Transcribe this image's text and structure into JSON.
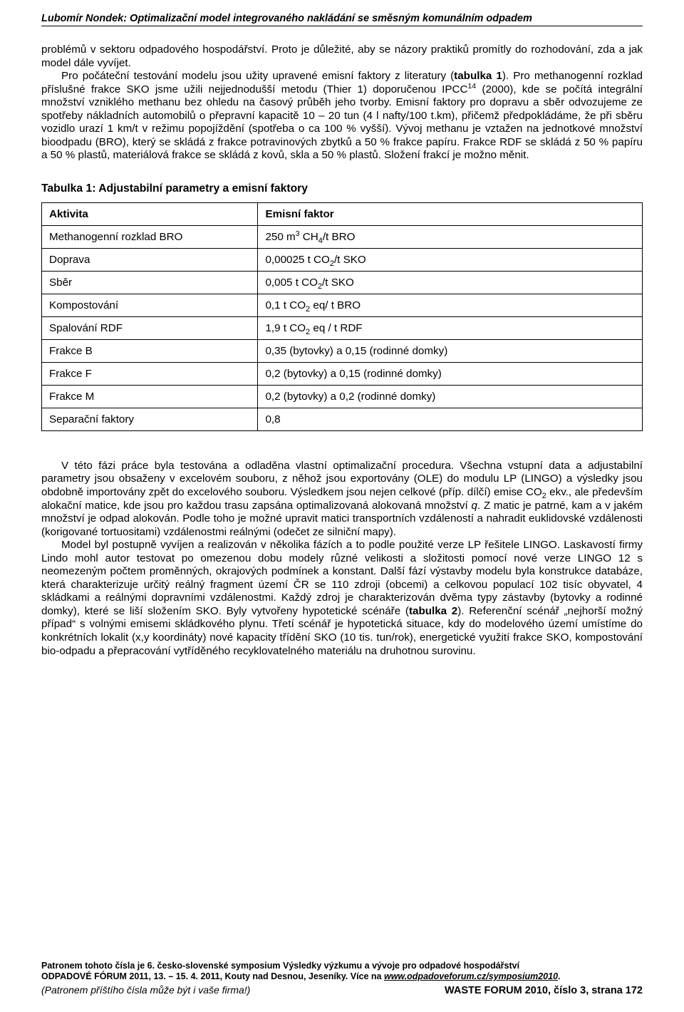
{
  "header": {
    "topline": "Lubomír Nondek: Optimalizační model integrovaného nakládání se směsným komunálním odpadem"
  },
  "para1_html": "problémů v sektoru odpadového hospodářství. Proto je důležité, aby se názory praktiků promítly do rozhodování, zda a jak model dále vyvíjet.",
  "para1b_html": "Pro počáteční testování modelu jsou užity upravené emisní faktory z literatury (<b>tabulka 1</b>). Pro methanogenní rozklad příslušné frakce SKO jsme užili nejjednodušší metodu (Thier 1) doporučenou IPCC<sup>14</sup> (2000), kde se počítá integrální množství vzniklého methanu bez ohledu na časový průběh jeho tvorby. Emisní faktory pro dopravu a sběr odvozujeme ze spotřeby nákladních automobilů o přepravní kapacitě 10 – 20 tun (4 l nafty/100 t.km), přičemž předpokládáme, že při sběru vozidlo urazí 1 km/t v režimu popojíždění (spotřeba o ca 100 % vyšší). Vývoj methanu je vztažen na jednotkové množství bioodpadu (BRO), který se skládá z frakce potravinových zbytků a 50 % frakce papíru. Frakce RDF se skládá z 50 % papíru a 50 % plastů, materiálová frakce se skládá z kovů, skla a 50 % plastů. Složení frakcí je možno měnit.",
  "table": {
    "title": "Tabulka 1: Adjustabilní parametry a emisní faktory",
    "header": {
      "c1": "Aktivita",
      "c2": "Emisní faktor"
    },
    "rows": [
      {
        "a": "Methanogenní rozklad BRO",
        "b": "250 m<sup>3</sup> CH<sub>4</sub>/t BRO"
      },
      {
        "a": "Doprava",
        "b": "0,00025 t CO<sub>2</sub>/t SKO"
      },
      {
        "a": "Sběr",
        "b": "0,005 t CO<sub>2</sub>/t SKO"
      },
      {
        "a": "Kompostování",
        "b": "0,1 t CO<sub>2</sub> eq/ t BRO"
      },
      {
        "a": "Spalování RDF",
        "b": "1,9 t CO<sub>2</sub> eq / t RDF"
      },
      {
        "a": "Frakce B",
        "b": "0,35 (bytovky) a 0,15 (rodinné domky)"
      },
      {
        "a": "Frakce F",
        "b": "0,2 (bytovky) a 0,15 (rodinné domky)"
      },
      {
        "a": "Frakce M",
        "b": "0,2 (bytovky) a 0,2 (rodinné domky)"
      },
      {
        "a": "Separační faktory",
        "b": "0,8"
      }
    ]
  },
  "para2a_html": "V této fázi práce byla testována a odladěna vlastní optimalizační procedura. Všechna vstupní data a adjustabilní parametry  jsou obsaženy v excelovém souboru, z něhož jsou exportovány (OLE) do modulu LP (LINGO) a výsledky jsou obdobně importovány zpět do excelového souboru. Výsledkem jsou nejen celkové (příp. dílčí) emise CO<sub>2</sub> ekv., ale především alokační matice, kde jsou pro každou trasu zapsána optimalizovaná alokovaná množství <i>q</i>. Z matic je patrné, kam a v jakém množství je odpad alokován. Podle toho je možné upravit matici transportních vzdáleností a nahradit euklidovské vzdálenosti (korigované tortuositami) vzdálenostmi reálnými (odečet ze silniční mapy).",
  "para2b_html": "Model byl postupně vyvíjen a realizován v několika fázích a to podle použité verze LP řešitele LINGO. Laskavostí firmy Lindo mohl autor testovat po omezenou dobu modely různé velikosti a složitosti pomocí nové verze LINGO 12 s neomezeným počtem proměnných, okrajových podmínek a konstant.  Další fází výstavby modelu byla konstrukce databáze, která charakterizuje určitý reálný fragment území ČR se 110 zdroji (obcemi) a celkovou populací 102 tisíc obyvatel, 4 skládkami a reálnými dopravními vzdálenostmi. Každý zdroj je charakterizován dvěma typy zástavby (bytovky a rodinné domky), které se liší složením SKO. Byly vytvořeny hypotetické scénáře (<b>tabulka 2</b>). Referenční scénář „nejhorší možný případ“ s volnými emisemi skládkového plynu. Třetí scénář je hypotetická situace, kdy do modelového území umístíme do konkrétních lokalit (x,y koordináty) nové kapacity třídění SKO (10 tis. tun/rok), energetické využití frakce SKO, kompostování bio-odpadu a přepracování vytříděného recyklovatelného materiálu na druhotnou surovinu.",
  "footer": {
    "line1": "Patronem tohoto čísla je 6. česko-slovenské symposium Výsledky výzkumu a vývoje pro odpadové hospodářství",
    "line2_pre": "ODPADOVÉ FÓRUM 2011, 13. – 15. 4. 2011, Kouty nad Desnou, Jeseníky. Více na ",
    "line2_url": "www.odpadoveforum.cz/symposium2010",
    "line2_post": ".",
    "line3": "(Patronem příštího čísla může být i vaše firma!)",
    "line4": "WASTE FORUM 2010, číslo 3, strana 172"
  }
}
